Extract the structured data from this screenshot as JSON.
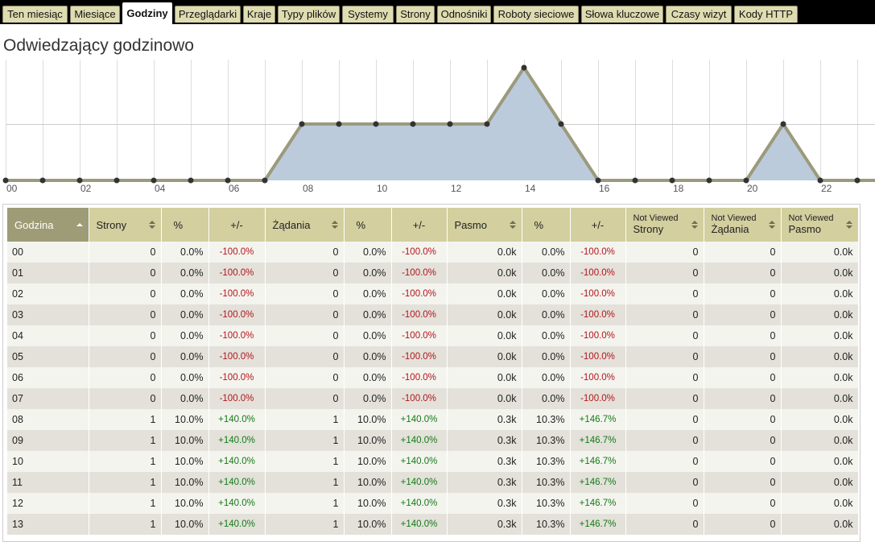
{
  "tabs": [
    {
      "label": "Ten miesiąc",
      "active": false
    },
    {
      "label": "Miesiące",
      "active": false
    },
    {
      "label": "Godziny",
      "active": true
    },
    {
      "label": "Przeglądarki",
      "active": false
    },
    {
      "label": "Kraje",
      "active": false
    },
    {
      "label": "Typy plików",
      "active": false
    },
    {
      "label": "Systemy",
      "active": false
    },
    {
      "label": "Strony",
      "active": false
    },
    {
      "label": "Odnośniki",
      "active": false
    },
    {
      "label": "Roboty sieciowe",
      "active": false
    },
    {
      "label": "Słowa kluczowe",
      "active": false
    },
    {
      "label": "Czasy wizyt",
      "active": false
    },
    {
      "label": "Kody HTTP",
      "active": false
    }
  ],
  "page": {
    "title": "Odwiedzający godzinowo"
  },
  "colors": {
    "area_fill": "#bccbdb",
    "line": "#9b9a7c",
    "header": "#d3cf9f",
    "header_sorted": "#9e9c76"
  },
  "chart_data": {
    "type": "area",
    "x": [
      "00",
      "01",
      "02",
      "03",
      "04",
      "05",
      "06",
      "07",
      "08",
      "09",
      "10",
      "11",
      "12",
      "13",
      "14",
      "15",
      "16",
      "17",
      "18",
      "19",
      "20",
      "21",
      "22",
      "23"
    ],
    "x_tick_labels": [
      "00",
      "02",
      "04",
      "06",
      "08",
      "10",
      "12",
      "14",
      "16",
      "18",
      "20",
      "22"
    ],
    "values": [
      0,
      0,
      0,
      0,
      0,
      0,
      0,
      0,
      1,
      1,
      1,
      1,
      1,
      1,
      2,
      1,
      0,
      0,
      0,
      0,
      0,
      1,
      0,
      0
    ],
    "ylim": [
      0,
      2
    ],
    "grid": true
  },
  "table": {
    "headers": [
      {
        "label": "Godzina",
        "sorted": true
      },
      {
        "label": "Strony"
      },
      {
        "label": "%"
      },
      {
        "label": "+/-"
      },
      {
        "label": "Żądania"
      },
      {
        "label": "%"
      },
      {
        "label": "+/-"
      },
      {
        "label": "Pasmo"
      },
      {
        "label": "%"
      },
      {
        "label": "+/-"
      },
      {
        "small": "Not Viewed",
        "label": "Strony"
      },
      {
        "small": "Not Viewed",
        "label": "Żądania"
      },
      {
        "small": "Not Viewed",
        "label": "Pasmo"
      }
    ],
    "rows": [
      [
        "00",
        "0",
        "0.0%",
        "-100.0%",
        "0",
        "0.0%",
        "-100.0%",
        "0.0k",
        "0.0%",
        "-100.0%",
        "0",
        "0",
        "0.0k"
      ],
      [
        "01",
        "0",
        "0.0%",
        "-100.0%",
        "0",
        "0.0%",
        "-100.0%",
        "0.0k",
        "0.0%",
        "-100.0%",
        "0",
        "0",
        "0.0k"
      ],
      [
        "02",
        "0",
        "0.0%",
        "-100.0%",
        "0",
        "0.0%",
        "-100.0%",
        "0.0k",
        "0.0%",
        "-100.0%",
        "0",
        "0",
        "0.0k"
      ],
      [
        "03",
        "0",
        "0.0%",
        "-100.0%",
        "0",
        "0.0%",
        "-100.0%",
        "0.0k",
        "0.0%",
        "-100.0%",
        "0",
        "0",
        "0.0k"
      ],
      [
        "04",
        "0",
        "0.0%",
        "-100.0%",
        "0",
        "0.0%",
        "-100.0%",
        "0.0k",
        "0.0%",
        "-100.0%",
        "0",
        "0",
        "0.0k"
      ],
      [
        "05",
        "0",
        "0.0%",
        "-100.0%",
        "0",
        "0.0%",
        "-100.0%",
        "0.0k",
        "0.0%",
        "-100.0%",
        "0",
        "0",
        "0.0k"
      ],
      [
        "06",
        "0",
        "0.0%",
        "-100.0%",
        "0",
        "0.0%",
        "-100.0%",
        "0.0k",
        "0.0%",
        "-100.0%",
        "0",
        "0",
        "0.0k"
      ],
      [
        "07",
        "0",
        "0.0%",
        "-100.0%",
        "0",
        "0.0%",
        "-100.0%",
        "0.0k",
        "0.0%",
        "-100.0%",
        "0",
        "0",
        "0.0k"
      ],
      [
        "08",
        "1",
        "10.0%",
        "+140.0%",
        "1",
        "10.0%",
        "+140.0%",
        "0.3k",
        "10.3%",
        "+146.7%",
        "0",
        "0",
        "0.0k"
      ],
      [
        "09",
        "1",
        "10.0%",
        "+140.0%",
        "1",
        "10.0%",
        "+140.0%",
        "0.3k",
        "10.3%",
        "+146.7%",
        "0",
        "0",
        "0.0k"
      ],
      [
        "10",
        "1",
        "10.0%",
        "+140.0%",
        "1",
        "10.0%",
        "+140.0%",
        "0.3k",
        "10.3%",
        "+146.7%",
        "0",
        "0",
        "0.0k"
      ],
      [
        "11",
        "1",
        "10.0%",
        "+140.0%",
        "1",
        "10.0%",
        "+140.0%",
        "0.3k",
        "10.3%",
        "+146.7%",
        "0",
        "0",
        "0.0k"
      ],
      [
        "12",
        "1",
        "10.0%",
        "+140.0%",
        "1",
        "10.0%",
        "+140.0%",
        "0.3k",
        "10.3%",
        "+146.7%",
        "0",
        "0",
        "0.0k"
      ],
      [
        "13",
        "1",
        "10.0%",
        "+140.0%",
        "1",
        "10.0%",
        "+140.0%",
        "0.3k",
        "10.3%",
        "+146.7%",
        "0",
        "0",
        "0.0k"
      ]
    ]
  }
}
